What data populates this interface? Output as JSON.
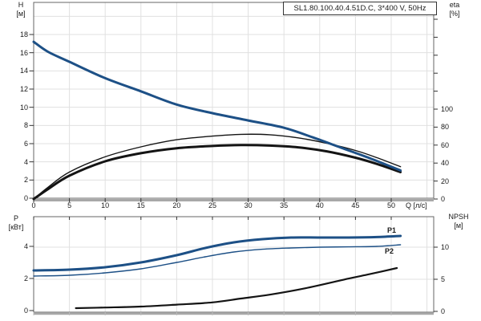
{
  "title_box": {
    "text": "SL1.80.100.40.4.51D.C, 3*400 V, 50Hz"
  },
  "colors": {
    "curve_blue": "#1d5086",
    "curve_black": "#141414",
    "grid": "#e0e0e0",
    "frame": "#666666",
    "axis_band": "#a8a8a8",
    "tick": "#333333",
    "text": "#1a1a1a"
  },
  "top_chart": {
    "y_axis_left": {
      "title": [
        "H",
        "[м]"
      ],
      "ticks": [
        0,
        2,
        4,
        6,
        8,
        10,
        12,
        14,
        16,
        18
      ]
    },
    "y_axis_right": {
      "title": [
        "eta",
        "[%]"
      ],
      "ticks": [
        0,
        20,
        40,
        60,
        80,
        100
      ],
      "unlabeled_ticks": [
        120,
        140,
        160,
        180,
        200
      ]
    },
    "x_axis": {
      "title": "Q [л/с]",
      "ticks": [
        0,
        5,
        10,
        15,
        20,
        25,
        30,
        35,
        40,
        45,
        50
      ]
    }
  },
  "bottom_chart": {
    "y_axis_left": {
      "title": [
        "P",
        "[кВт]"
      ],
      "ticks": [
        0,
        2,
        4
      ]
    },
    "y_axis_right": {
      "title": [
        "NPSH",
        "[м]"
      ],
      "ticks": [
        0,
        5,
        10
      ]
    },
    "curve_labels": {
      "p1": "P1",
      "p2": "P2"
    }
  },
  "chart_data": [
    {
      "type": "line",
      "panel": "top",
      "title": "SL1.80.100.40.4.51D.C, 3*400 V, 50Hz",
      "xlabel": "Q [л/с]",
      "ylabel": "H [м]",
      "y2label": "eta [%]",
      "xlim": [
        0,
        55.9
      ],
      "ylim": [
        0,
        21.5
      ],
      "y2lim": [
        0,
        219
      ],
      "grid": true,
      "series": [
        {
          "name": "H",
          "yaxis": "H",
          "color": "#1d5086",
          "style": "thick",
          "points": [
            [
              0,
              17.2
            ],
            [
              2,
              16.1
            ],
            [
              5,
              15.0
            ],
            [
              10,
              13.2
            ],
            [
              15,
              11.75
            ],
            [
              20,
              10.3
            ],
            [
              25,
              9.35
            ],
            [
              30,
              8.55
            ],
            [
              35,
              7.75
            ],
            [
              39,
              6.7
            ],
            [
              43,
              5.55
            ],
            [
              47,
              4.4
            ],
            [
              51.3,
              3.05
            ]
          ]
        },
        {
          "name": "eta1",
          "yaxis": "eta",
          "color": "#141414",
          "style": "thin",
          "points": [
            [
              0,
              0
            ],
            [
              2,
              13
            ],
            [
              5,
              30
            ],
            [
              10,
              47
            ],
            [
              15,
              58
            ],
            [
              20,
              66
            ],
            [
              25,
              70
            ],
            [
              29,
              72
            ],
            [
              33,
              71.5
            ],
            [
              37,
              68
            ],
            [
              41,
              62
            ],
            [
              45,
              54
            ],
            [
              48,
              46
            ],
            [
              51.3,
              36
            ]
          ]
        },
        {
          "name": "eta2",
          "yaxis": "eta",
          "color": "#141414",
          "style": "thick",
          "points": [
            [
              0,
              0
            ],
            [
              2,
              11
            ],
            [
              5,
              26
            ],
            [
              10,
              42
            ],
            [
              15,
              51
            ],
            [
              20,
              56.5
            ],
            [
              25,
              59
            ],
            [
              29,
              60
            ],
            [
              33,
              59.5
            ],
            [
              37,
              57.5
            ],
            [
              41,
              53
            ],
            [
              45,
              46
            ],
            [
              48,
              39
            ],
            [
              51.3,
              30
            ]
          ]
        }
      ]
    },
    {
      "type": "line",
      "panel": "bottom",
      "xlabel": "Q [л/с]",
      "ylabel": "P [кВт]",
      "y2label": "NPSH [м]",
      "xlim": [
        0,
        55.9
      ],
      "ylim": [
        0,
        5.85
      ],
      "y2lim": [
        0,
        14.9
      ],
      "grid": true,
      "series": [
        {
          "name": "P1",
          "yaxis": "P",
          "color": "#1d5086",
          "style": "thick",
          "points": [
            [
              0,
              2.5
            ],
            [
              5,
              2.55
            ],
            [
              10,
              2.7
            ],
            [
              15,
              3.0
            ],
            [
              20,
              3.45
            ],
            [
              24,
              3.9
            ],
            [
              28,
              4.25
            ],
            [
              32,
              4.45
            ],
            [
              36,
              4.55
            ],
            [
              40,
              4.55
            ],
            [
              44,
              4.55
            ],
            [
              48,
              4.58
            ],
            [
              51.3,
              4.65
            ]
          ]
        },
        {
          "name": "P2",
          "yaxis": "P",
          "color": "#1d5086",
          "style": "thin",
          "points": [
            [
              0,
              2.15
            ],
            [
              5,
              2.2
            ],
            [
              10,
              2.35
            ],
            [
              15,
              2.6
            ],
            [
              20,
              3.0
            ],
            [
              24,
              3.35
            ],
            [
              28,
              3.65
            ],
            [
              32,
              3.82
            ],
            [
              36,
              3.9
            ],
            [
              40,
              3.95
            ],
            [
              44,
              3.97
            ],
            [
              48,
              4.0
            ],
            [
              51.3,
              4.1
            ]
          ]
        },
        {
          "name": "NPSH",
          "yaxis": "NPSH",
          "color": "#141414",
          "style": "medium",
          "points": [
            [
              5.9,
              0.5
            ],
            [
              10,
              0.6
            ],
            [
              15,
              0.75
            ],
            [
              20,
              1.05
            ],
            [
              25,
              1.4
            ],
            [
              29,
              2.0
            ],
            [
              33,
              2.6
            ],
            [
              38,
              3.6
            ],
            [
              44,
              5.1
            ],
            [
              47,
              5.8
            ],
            [
              50.8,
              6.75
            ]
          ]
        }
      ]
    }
  ]
}
